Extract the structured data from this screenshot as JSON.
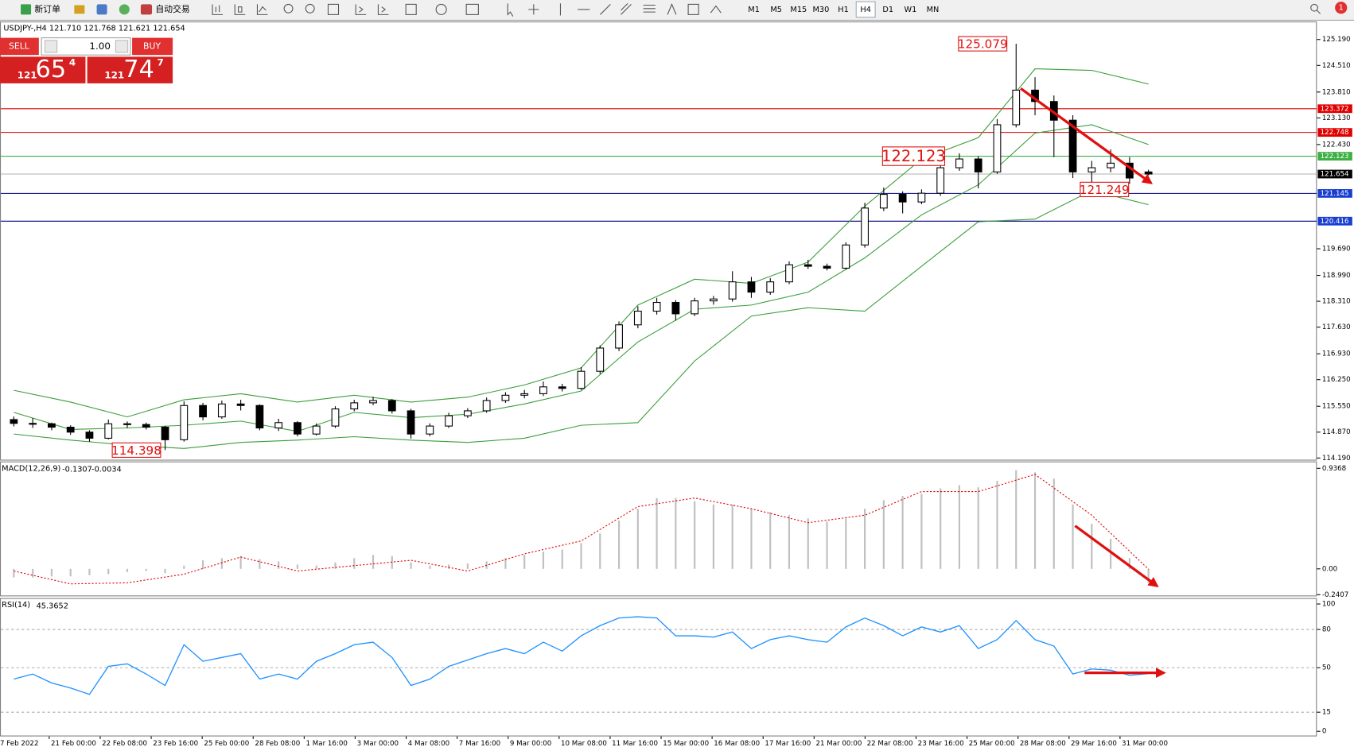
{
  "toolbar": {
    "new_order": "新订单",
    "auto_trade": "自动交易",
    "timeframes": [
      "M1",
      "M5",
      "M15",
      "M30",
      "H1",
      "H4",
      "D1",
      "W1",
      "MN"
    ],
    "active_timeframe": 5,
    "notifications": "1"
  },
  "trade_panel": {
    "sell": "SELL",
    "buy": "BUY",
    "lots": "1.00",
    "sell_price": {
      "big": "121",
      "pips": "65",
      "point": "4"
    },
    "buy_price": {
      "big": "121",
      "pips": "74",
      "point": "7"
    }
  },
  "chart_data": [
    {
      "type": "candlestick",
      "title": "USDJPY-,H4  121.710 121.768 121.621 121.654",
      "ohlc": [
        [
          115.2,
          115.28,
          115.02,
          115.1
        ],
        [
          115.1,
          115.24,
          114.98,
          115.09
        ],
        [
          115.09,
          115.12,
          114.92,
          115.0
        ],
        [
          115.0,
          115.05,
          114.8,
          114.87
        ],
        [
          114.87,
          114.92,
          114.62,
          114.71
        ],
        [
          114.71,
          115.2,
          114.68,
          115.09
        ],
        [
          115.09,
          115.15,
          114.98,
          115.07
        ],
        [
          115.07,
          115.12,
          114.94,
          115.0
        ],
        [
          115.0,
          115.04,
          114.4,
          114.67
        ],
        [
          114.67,
          115.68,
          114.62,
          115.57
        ],
        [
          115.57,
          115.64,
          115.18,
          115.27
        ],
        [
          115.27,
          115.7,
          115.22,
          115.61
        ],
        [
          115.61,
          115.72,
          115.44,
          115.57
        ],
        [
          115.57,
          115.6,
          114.92,
          114.98
        ],
        [
          114.98,
          115.22,
          114.9,
          115.12
        ],
        [
          115.12,
          115.16,
          114.76,
          114.82
        ],
        [
          114.82,
          115.1,
          114.78,
          115.03
        ],
        [
          115.03,
          115.55,
          114.98,
          115.48
        ],
        [
          115.48,
          115.72,
          115.42,
          115.64
        ],
        [
          115.64,
          115.8,
          115.58,
          115.7
        ],
        [
          115.7,
          115.74,
          115.36,
          115.43
        ],
        [
          115.43,
          115.48,
          114.7,
          114.82
        ],
        [
          114.82,
          115.1,
          114.76,
          115.03
        ],
        [
          115.03,
          115.38,
          114.98,
          115.3
        ],
        [
          115.3,
          115.5,
          115.24,
          115.43
        ],
        [
          115.43,
          115.78,
          115.38,
          115.7
        ],
        [
          115.7,
          115.92,
          115.64,
          115.84
        ],
        [
          115.84,
          115.98,
          115.76,
          115.88
        ],
        [
          115.88,
          116.2,
          115.82,
          116.06
        ],
        [
          116.06,
          116.14,
          115.94,
          116.02
        ],
        [
          116.02,
          116.58,
          115.98,
          116.47
        ],
        [
          116.47,
          117.15,
          116.4,
          117.08
        ],
        [
          117.08,
          117.78,
          117.0,
          117.69
        ],
        [
          117.69,
          118.18,
          117.6,
          118.05
        ],
        [
          118.05,
          118.4,
          117.96,
          118.28
        ],
        [
          118.28,
          118.34,
          117.8,
          117.98
        ],
        [
          117.98,
          118.4,
          117.92,
          118.32
        ],
        [
          118.32,
          118.45,
          118.22,
          118.37
        ],
        [
          118.37,
          119.1,
          118.3,
          118.82
        ],
        [
          118.82,
          118.95,
          118.4,
          118.55
        ],
        [
          118.55,
          118.92,
          118.48,
          118.82
        ],
        [
          118.82,
          119.36,
          118.76,
          119.27
        ],
        [
          119.27,
          119.4,
          119.16,
          119.23
        ],
        [
          119.23,
          119.3,
          119.12,
          119.18
        ],
        [
          119.18,
          119.86,
          119.14,
          119.79
        ],
        [
          119.79,
          120.9,
          119.72,
          120.76
        ],
        [
          120.76,
          121.3,
          120.68,
          121.12
        ],
        [
          121.12,
          121.2,
          120.62,
          120.92
        ],
        [
          120.92,
          121.25,
          120.86,
          121.15
        ],
        [
          121.15,
          121.96,
          121.08,
          121.82
        ],
        [
          121.82,
          122.2,
          121.74,
          122.05
        ],
        [
          122.05,
          122.12,
          121.28,
          121.71
        ],
        [
          121.71,
          123.1,
          121.66,
          122.95
        ],
        [
          122.95,
          125.079,
          122.88,
          123.86
        ],
        [
          123.86,
          124.2,
          123.2,
          123.56
        ],
        [
          123.56,
          123.72,
          122.1,
          123.07
        ],
        [
          123.07,
          123.2,
          121.55,
          121.71
        ],
        [
          121.71,
          122.0,
          121.249,
          121.82
        ],
        [
          121.82,
          122.3,
          121.7,
          121.94
        ],
        [
          121.94,
          122.1,
          121.4,
          121.55
        ],
        [
          121.71,
          121.768,
          121.621,
          121.654
        ]
      ],
      "bands": {
        "color": "#3a9d3a",
        "x": [
          0,
          3,
          6,
          9,
          12,
          15,
          18,
          21,
          24,
          27,
          30,
          33,
          36,
          39,
          42,
          45,
          48,
          51,
          54,
          57,
          60
        ],
        "upper": [
          115.97,
          115.66,
          115.27,
          115.72,
          115.88,
          115.66,
          115.84,
          115.66,
          115.79,
          116.11,
          116.56,
          118.21,
          118.89,
          118.78,
          119.34,
          120.81,
          122.05,
          122.61,
          124.42,
          124.38,
          124.02
        ],
        "middle": [
          115.39,
          114.94,
          114.98,
          115.05,
          115.16,
          114.89,
          115.39,
          115.25,
          115.34,
          115.61,
          115.95,
          117.24,
          118.1,
          118.21,
          118.55,
          119.45,
          120.58,
          121.37,
          122.73,
          122.95,
          122.43
        ],
        "lower": [
          114.82,
          114.66,
          114.53,
          114.44,
          114.6,
          114.66,
          114.75,
          114.66,
          114.6,
          114.71,
          115.05,
          115.12,
          116.74,
          117.92,
          118.14,
          118.05,
          119.23,
          120.4,
          120.47,
          121.22,
          120.85
        ]
      },
      "ylim": [
        114.145,
        125.642
      ],
      "yticks": [
        {
          "value": 125.19,
          "label": "125.190"
        },
        {
          "value": 124.51,
          "label": "124.510"
        },
        {
          "value": 123.81,
          "label": "123.810"
        },
        {
          "value": 123.13,
          "label": "123.130"
        },
        {
          "value": 122.43,
          "label": "122.430"
        },
        {
          "value": 119.69,
          "label": "119.690"
        },
        {
          "value": 118.99,
          "label": "118.990"
        },
        {
          "value": 118.31,
          "label": "118.310"
        },
        {
          "value": 117.63,
          "label": "117.630"
        },
        {
          "value": 116.93,
          "label": "116.930"
        },
        {
          "value": 116.25,
          "label": "116.250"
        },
        {
          "value": 115.55,
          "label": "115.550"
        },
        {
          "value": 114.87,
          "label": "114.870"
        },
        {
          "value": 114.19,
          "label": "114.190"
        }
      ],
      "levels": [
        {
          "value": 123.372,
          "color": "#e00000",
          "tag_color": "#e00000"
        },
        {
          "value": 122.748,
          "color": "#e00000",
          "tag_color": "#e00000"
        },
        {
          "value": 122.123,
          "color": "#3cb043",
          "tag_color": "#3cb043"
        },
        {
          "value": 121.654,
          "color": "#b0b0b0",
          "tag_color": "#000000"
        },
        {
          "value": 121.145,
          "color": "#000080",
          "tag_color": "#1a3fd0"
        },
        {
          "value": 120.416,
          "color": "#000080",
          "tag_color": "#1a3fd0"
        }
      ],
      "price_labels": [
        125.079,
        122.123,
        121.249,
        114.398
      ]
    },
    {
      "type": "macd",
      "title": "MACD(12,26,9)",
      "values": [
        -0.08,
        -0.08,
        -0.07,
        -0.07,
        -0.06,
        -0.05,
        -0.03,
        -0.02,
        -0.04,
        0.03,
        0.08,
        0.1,
        0.12,
        0.09,
        0.07,
        0.04,
        0.03,
        0.06,
        0.1,
        0.13,
        0.12,
        0.06,
        0.03,
        0.04,
        0.05,
        0.07,
        0.1,
        0.13,
        0.16,
        0.18,
        0.24,
        0.33,
        0.45,
        0.56,
        0.66,
        0.66,
        0.63,
        0.6,
        0.6,
        0.56,
        0.53,
        0.5,
        0.47,
        0.44,
        0.47,
        0.56,
        0.64,
        0.68,
        0.7,
        0.75,
        0.78,
        0.76,
        0.82,
        0.92,
        0.9,
        0.84,
        0.6,
        0.42,
        0.28,
        0.1,
        -0.1307
      ],
      "color": "#c0c0c0",
      "signal": {
        "color": "#e00000",
        "x": [
          0,
          3,
          6,
          9,
          12,
          15,
          18,
          21,
          24,
          27,
          30,
          33,
          36,
          39,
          42,
          45,
          48,
          51,
          54,
          57,
          60
        ],
        "values": [
          -0.02,
          -0.14,
          -0.13,
          -0.05,
          0.11,
          -0.02,
          0.03,
          0.08,
          -0.02,
          0.14,
          0.26,
          0.58,
          0.66,
          0.56,
          0.43,
          0.5,
          0.72,
          0.72,
          0.88,
          0.5,
          -0.0034
        ]
      },
      "ylim": [
        -0.248,
        0.993
      ],
      "yticks": [
        0.9368,
        {
          "value": 0,
          "label": "0.00"
        },
        -0.2407
      ]
    },
    {
      "type": "rsi",
      "title": "RSI(14)",
      "values": [
        41,
        45,
        38,
        34,
        29,
        51,
        53,
        45,
        36,
        68,
        55,
        58,
        61,
        41,
        45,
        41,
        55,
        61,
        68,
        70,
        58,
        36,
        41,
        51,
        56,
        61,
        65,
        61,
        70,
        63,
        75,
        83,
        89,
        90,
        89,
        75,
        75,
        74,
        78,
        65,
        72,
        75,
        72,
        70,
        82,
        89,
        83,
        75,
        82,
        78,
        83,
        65,
        72,
        87,
        72,
        67,
        45,
        49,
        48,
        44,
        45.3652
      ],
      "color": "#1e90ff",
      "ylim": [
        -4,
        104
      ],
      "yticks": [
        100,
        80,
        50,
        15,
        0
      ],
      "levels": [
        80,
        50,
        15
      ]
    }
  ],
  "x_labels": [
    "7 Feb 2022",
    "21 Feb 00:00",
    "22 Feb 08:00",
    "23 Feb 16:00",
    "25 Feb 00:00",
    "28 Feb 08:00",
    "1 Mar 16:00",
    "3 Mar 00:00",
    "4 Mar 08:00",
    "7 Mar 16:00",
    "9 Mar 00:00",
    "10 Mar 08:00",
    "11 Mar 16:00",
    "15 Mar 00:00",
    "16 Mar 08:00",
    "17 Mar 16:00",
    "21 Mar 00:00",
    "22 Mar 08:00",
    "23 Mar 16:00",
    "25 Mar 00:00",
    "28 Mar 08:00",
    "29 Mar 16:00",
    "31 Mar 00:00"
  ]
}
